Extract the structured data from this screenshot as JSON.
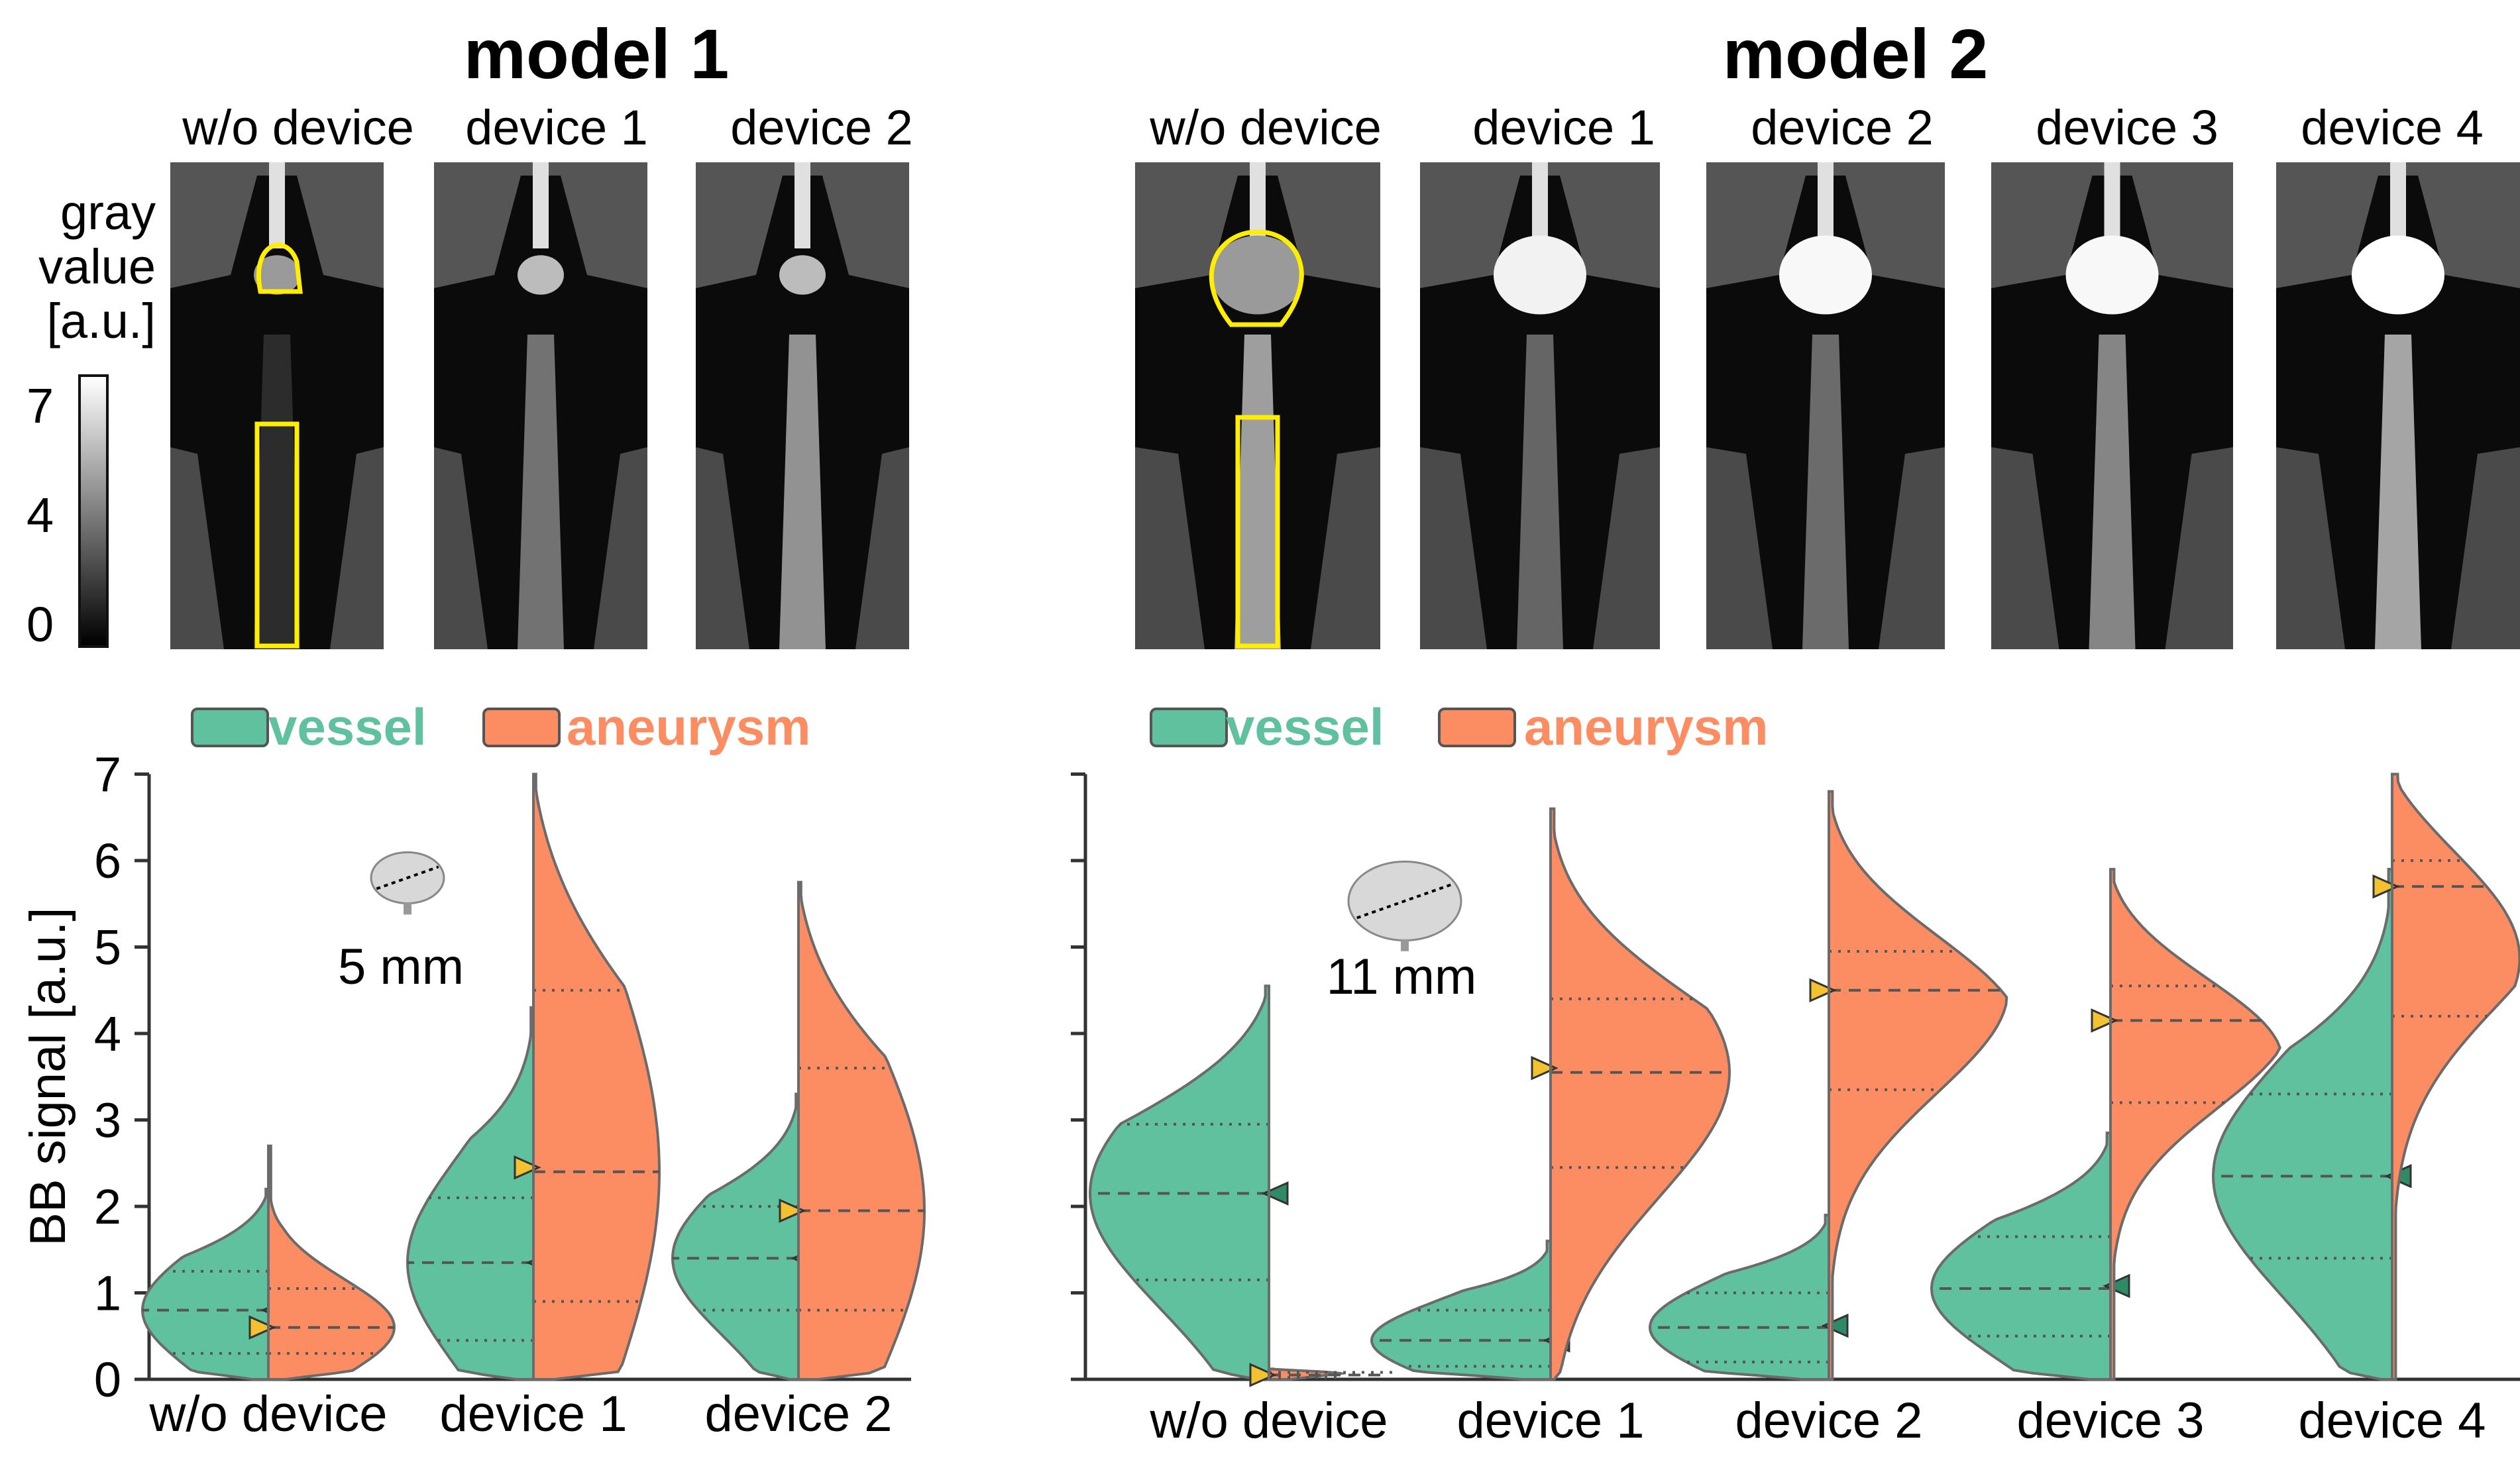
{
  "colors": {
    "vessel": "#5fc19e",
    "aneurysm": "#fc8d62",
    "roi": "#ffee00",
    "mean_marker": "#f2c230",
    "outline": "#6b6b6b"
  },
  "model1": {
    "title": "model 1",
    "panel_labels": [
      "w/o device",
      "device 1",
      "device 2"
    ],
    "legend": {
      "vessel": "vessel",
      "aneurysm": "aneurysm"
    },
    "size_label": "5 mm"
  },
  "model2": {
    "title": "model 2",
    "panel_labels": [
      "w/o device",
      "device 1",
      "device 2",
      "device 3",
      "device 4"
    ],
    "legend": {
      "vessel": "vessel",
      "aneurysm": "aneurysm"
    },
    "size_label": "11 mm"
  },
  "colorbar": {
    "label_lines": [
      "gray",
      "value",
      "[a.u.]"
    ],
    "ticks": [
      "7",
      "4",
      "0"
    ]
  },
  "chart_data": [
    {
      "type": "violin",
      "panel": "model 1",
      "categories": [
        "w/o device",
        "device 1",
        "device 2"
      ],
      "ylabel": "BB signal [a.u.]",
      "ylim": [
        0,
        7
      ],
      "yticks": [
        0,
        1,
        2,
        3,
        4,
        5,
        6,
        7
      ],
      "series": [
        {
          "name": "vessel",
          "side": "left",
          "violins": [
            {
              "max": 2.2,
              "q1": 0.3,
              "median": 0.8,
              "q3": 1.25,
              "mean": 0.8
            },
            {
              "max": 4.3,
              "q1": 0.45,
              "median": 1.35,
              "q3": 2.1,
              "mean": 1.35
            },
            {
              "max": 3.3,
              "q1": 0.8,
              "median": 1.4,
              "q3": 2.0,
              "mean": 1.4
            }
          ]
        },
        {
          "name": "aneurysm",
          "side": "right",
          "violins": [
            {
              "max": 2.7,
              "q1": 0.3,
              "median": 0.6,
              "q3": 1.05,
              "mean": 0.6
            },
            {
              "max": 7.0,
              "q1": 0.9,
              "median": 2.4,
              "q3": 4.5,
              "mean": 2.45
            },
            {
              "max": 5.75,
              "q1": 0.8,
              "median": 1.95,
              "q3": 3.6,
              "mean": 1.95
            }
          ]
        }
      ]
    },
    {
      "type": "violin",
      "panel": "model 2",
      "categories": [
        "w/o device",
        "device 1",
        "device 2",
        "device 3",
        "device 4"
      ],
      "ylabel": "",
      "ylim": [
        0,
        7
      ],
      "yticks": [
        0,
        1,
        2,
        3,
        4,
        5,
        6,
        7
      ],
      "series": [
        {
          "name": "vessel",
          "side": "left",
          "violins": [
            {
              "max": 4.55,
              "q1": 1.15,
              "median": 2.15,
              "q3": 2.95,
              "mean": 2.15
            },
            {
              "max": 1.6,
              "q1": 0.15,
              "median": 0.45,
              "q3": 0.8,
              "mean": 0.45
            },
            {
              "max": 1.9,
              "q1": 0.2,
              "median": 0.6,
              "q3": 1.0,
              "mean": 0.62
            },
            {
              "max": 2.85,
              "q1": 0.5,
              "median": 1.05,
              "q3": 1.65,
              "mean": 1.08
            },
            {
              "max": 5.9,
              "q1": 1.4,
              "median": 2.35,
              "q3": 3.3,
              "mean": 2.35
            }
          ]
        },
        {
          "name": "aneurysm",
          "side": "right",
          "violins": [
            {
              "max": 0.12,
              "q1": 0.02,
              "median": 0.05,
              "q3": 0.08,
              "mean": 0.05
            },
            {
              "max": 6.6,
              "q1": 2.45,
              "median": 3.55,
              "q3": 4.4,
              "mean": 3.6
            },
            {
              "max": 6.8,
              "q1": 3.35,
              "median": 4.5,
              "q3": 4.95,
              "mean": 4.5
            },
            {
              "max": 5.9,
              "q1": 3.2,
              "median": 4.15,
              "q3": 4.55,
              "mean": 4.15
            },
            {
              "max": 7.0,
              "q1": 4.2,
              "median": 5.7,
              "q3": 6.0,
              "mean": 5.7
            }
          ]
        }
      ]
    }
  ]
}
